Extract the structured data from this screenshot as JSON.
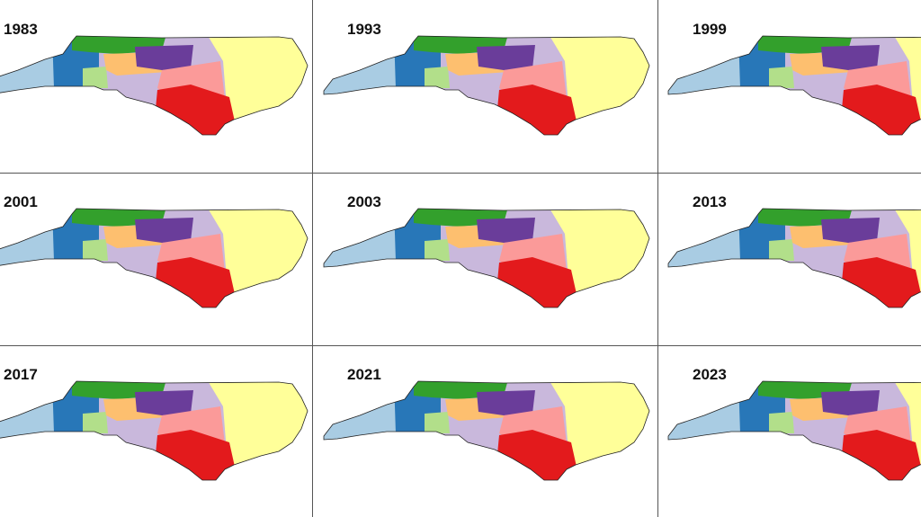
{
  "panels": [
    {
      "label": "1983"
    },
    {
      "label": "1993"
    },
    {
      "label": "1999"
    },
    {
      "label": "2001"
    },
    {
      "label": "2003"
    },
    {
      "label": "2013"
    },
    {
      "label": "2017"
    },
    {
      "label": "2021"
    },
    {
      "label": "2023"
    }
  ]
}
